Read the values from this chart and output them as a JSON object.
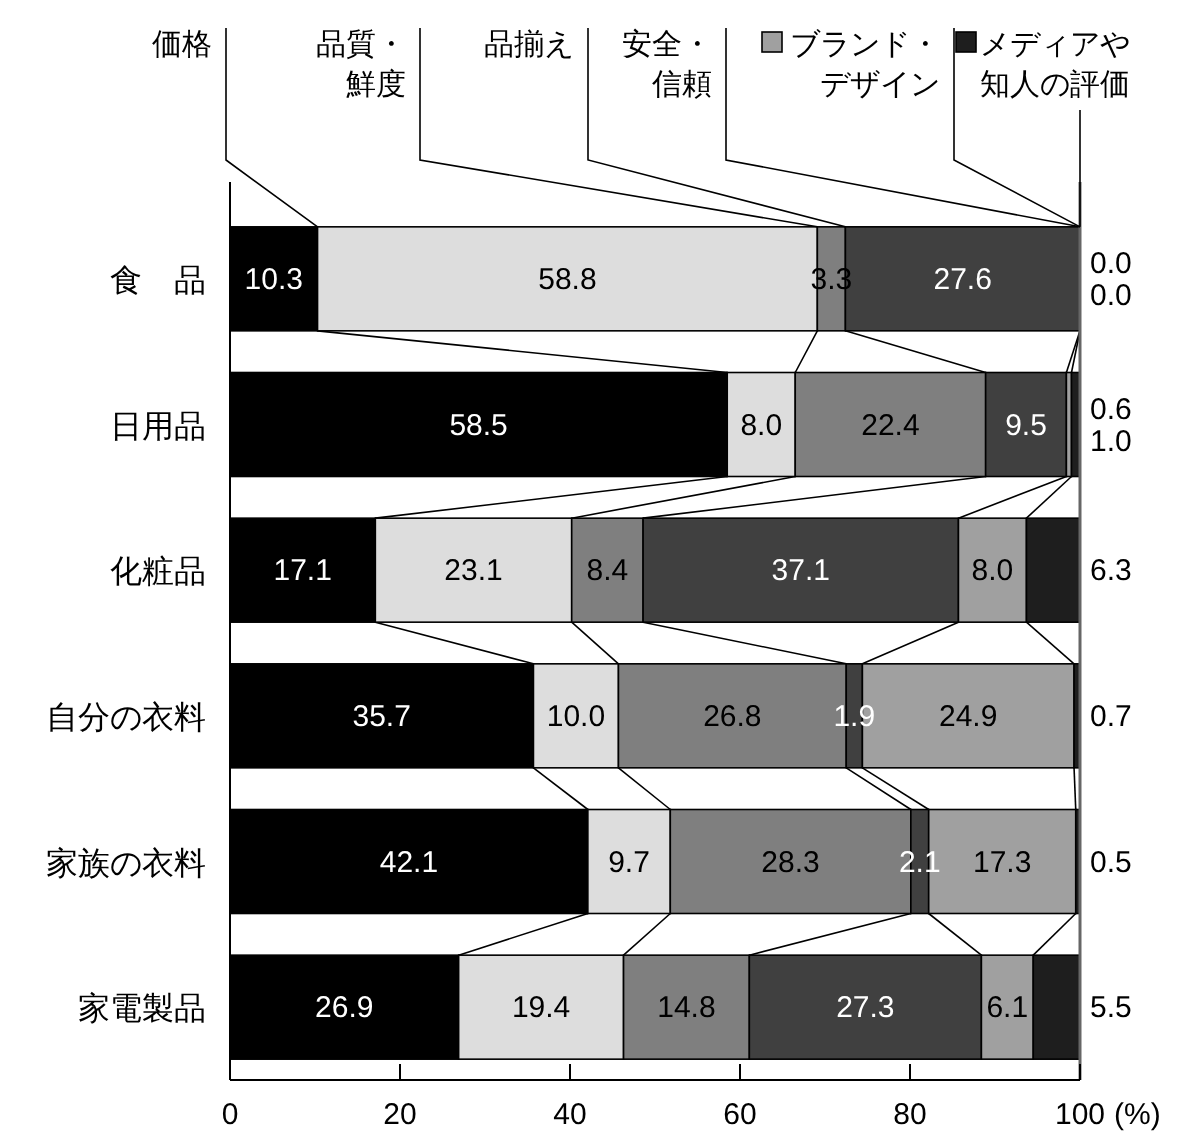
{
  "chart_data": {
    "type": "bar",
    "orientation": "horizontal",
    "stacked": true,
    "categories": [
      "食　品",
      "日用品",
      "化粧品",
      "自分の衣料",
      "家族の衣料",
      "家電製品"
    ],
    "series": [
      {
        "name": "価格",
        "color": "#000000",
        "values": [
          10.3,
          58.5,
          17.1,
          35.7,
          42.1,
          26.9
        ],
        "value_labels": [
          "10.3",
          "58.5",
          "17.1",
          "35.7",
          "42.1",
          "26.9"
        ]
      },
      {
        "name": "品質・鮮度",
        "color": "#dddddd",
        "values": [
          58.8,
          8.0,
          23.1,
          10.0,
          9.7,
          19.4
        ],
        "value_labels": [
          "58.8",
          "8.0",
          "23.1",
          "10.0",
          "9.7",
          "19.4"
        ]
      },
      {
        "name": "品揃え",
        "color": "#7f7f7f",
        "values": [
          3.3,
          22.4,
          8.4,
          26.8,
          28.3,
          14.8
        ],
        "value_labels": [
          "3.3",
          "22.4",
          "8.4",
          "26.8",
          "28.3",
          "14.8"
        ]
      },
      {
        "name": "安全・信頼",
        "color": "#404040",
        "values": [
          27.6,
          9.5,
          37.1,
          1.9,
          2.1,
          27.3
        ],
        "value_labels": [
          "27.6",
          "9.5",
          "37.1",
          "1.9",
          "2.1",
          "27.3"
        ]
      },
      {
        "name": "ブランド・デザイン",
        "color": "#a0a0a0",
        "values": [
          0.0,
          0.6,
          8.0,
          24.9,
          17.3,
          6.1
        ],
        "value_labels": [
          "0.0",
          "0.6",
          "8.0",
          "24.9",
          "17.3",
          "6.1"
        ]
      },
      {
        "name": "メディアや知人の評価",
        "color": "#1e1e1e",
        "values": [
          0.0,
          1.0,
          6.3,
          0.7,
          0.5,
          5.5
        ],
        "value_labels": [
          "0.0",
          "1.0",
          "6.3",
          "0.7",
          "0.5",
          "5.5"
        ]
      }
    ],
    "xlim": [
      0,
      100
    ],
    "xticks": [
      0,
      20,
      40,
      60,
      80,
      100
    ],
    "xlabel": "(%)",
    "legend": "top"
  }
}
